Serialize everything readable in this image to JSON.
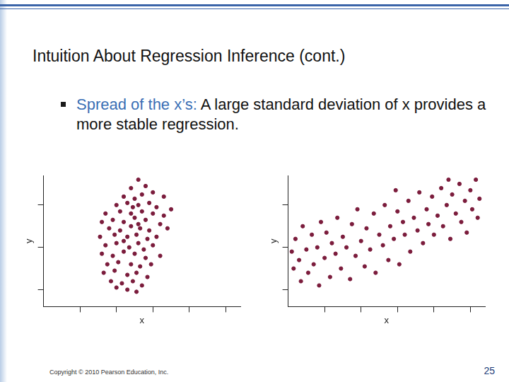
{
  "slide": {
    "title": "Intuition About Regression Inference (cont.)",
    "bullet": {
      "lead": "Spread of the x’s:",
      "text": "A large standard deviation of x provides a more stable regression."
    },
    "copyright": "Copyright © 2010 Pearson Education, Inc.",
    "page": "25"
  },
  "chart_data": [
    {
      "type": "scatter",
      "x_label": "x",
      "y_label": "y",
      "color": "#7b1c3c",
      "marker": "circle",
      "tick_labels": false,
      "grid": false,
      "xlim": [
        0,
        5.4
      ],
      "xticks": [
        1,
        2,
        3,
        4,
        5
      ],
      "ylim": [
        0.6,
        3.7
      ],
      "yticks": [
        1,
        2,
        3
      ],
      "x": [
        2.6,
        2.4,
        2.8,
        3.0,
        2.2,
        2.5,
        2.7,
        3.3,
        2.0,
        2.3,
        2.6,
        2.9,
        3.1,
        3.5,
        1.7,
        2.1,
        2.4,
        2.7,
        3.0,
        3.3,
        1.6,
        1.9,
        2.2,
        2.5,
        2.8,
        3.2,
        1.8,
        2.1,
        2.4,
        2.65,
        2.9,
        3.4,
        1.55,
        1.95,
        2.3,
        2.55,
        2.85,
        3.1,
        1.7,
        2.0,
        2.35,
        2.6,
        2.75,
        3.0,
        1.6,
        1.9,
        2.2,
        2.5,
        2.8,
        3.2,
        1.75,
        2.05,
        2.4,
        2.65,
        2.95,
        1.65,
        1.95,
        2.3,
        2.55,
        2.85,
        1.85,
        2.15,
        2.45,
        2.7,
        2.3,
        2.55,
        2.0,
        2.6,
        2.45,
        2.2
      ],
      "values": [
        3.6,
        3.4,
        3.45,
        3.3,
        3.2,
        3.15,
        3.25,
        3.2,
        3.0,
        3.05,
        3.0,
        3.05,
        2.95,
        2.9,
        2.8,
        2.85,
        2.8,
        2.85,
        2.8,
        2.75,
        2.6,
        2.65,
        2.6,
        2.7,
        2.65,
        2.55,
        2.45,
        2.4,
        2.5,
        2.45,
        2.4,
        2.45,
        2.25,
        2.3,
        2.25,
        2.3,
        2.2,
        2.25,
        2.05,
        2.1,
        2.0,
        2.1,
        1.95,
        2.05,
        1.85,
        1.8,
        1.9,
        1.85,
        1.75,
        1.8,
        1.6,
        1.65,
        1.6,
        1.55,
        1.6,
        1.4,
        1.45,
        1.35,
        1.4,
        1.3,
        1.2,
        1.15,
        1.2,
        1.1,
        1.0,
        0.95,
        1.05,
        2.55,
        2.95,
        2.15
      ]
    },
    {
      "type": "scatter",
      "x_label": "x",
      "y_label": "y",
      "color": "#7b1c3c",
      "marker": "circle",
      "tick_labels": false,
      "grid": false,
      "xlim": [
        0,
        5.4
      ],
      "xticks": [
        1,
        2,
        3,
        4,
        5
      ],
      "ylim": [
        0.6,
        3.7
      ],
      "yticks": [
        1,
        2,
        3
      ],
      "x": [
        0.1,
        0.15,
        0.2,
        0.3,
        0.35,
        0.4,
        0.5,
        0.55,
        0.65,
        0.7,
        0.8,
        0.85,
        0.9,
        1.0,
        1.05,
        1.15,
        1.2,
        1.3,
        1.35,
        1.45,
        1.5,
        1.6,
        1.7,
        1.75,
        1.85,
        1.9,
        2.0,
        2.1,
        2.15,
        2.25,
        2.35,
        2.4,
        2.5,
        2.6,
        2.65,
        2.75,
        2.8,
        2.9,
        3.0,
        3.05,
        3.15,
        3.2,
        3.3,
        3.35,
        3.45,
        3.55,
        3.6,
        3.7,
        3.8,
        3.85,
        3.95,
        4.0,
        4.1,
        4.2,
        4.25,
        4.35,
        4.45,
        4.5,
        4.6,
        4.7,
        4.75,
        4.85,
        4.9,
        5.0,
        5.05,
        5.15,
        5.2,
        5.25,
        4.4,
        2.95
      ],
      "values": [
        1.9,
        1.5,
        2.2,
        1.7,
        1.2,
        2.5,
        1.95,
        1.4,
        2.3,
        1.6,
        2.0,
        1.1,
        2.6,
        1.75,
        2.35,
        1.3,
        2.1,
        1.85,
        2.7,
        1.5,
        2.25,
        2.0,
        1.25,
        2.55,
        1.8,
        2.9,
        2.15,
        1.55,
        2.45,
        1.95,
        2.8,
        1.4,
        2.3,
        2.05,
        3.0,
        1.7,
        2.5,
        2.2,
        2.85,
        1.6,
        2.6,
        2.3,
        3.1,
        1.9,
        2.7,
        2.4,
        3.3,
        2.1,
        2.9,
        2.55,
        3.2,
        2.3,
        2.75,
        3.4,
        2.5,
        3.0,
        2.2,
        3.25,
        2.8,
        3.5,
        2.6,
        3.1,
        2.35,
        3.35,
        2.9,
        3.6,
        2.7,
        3.15,
        3.6,
        3.35
      ]
    }
  ]
}
